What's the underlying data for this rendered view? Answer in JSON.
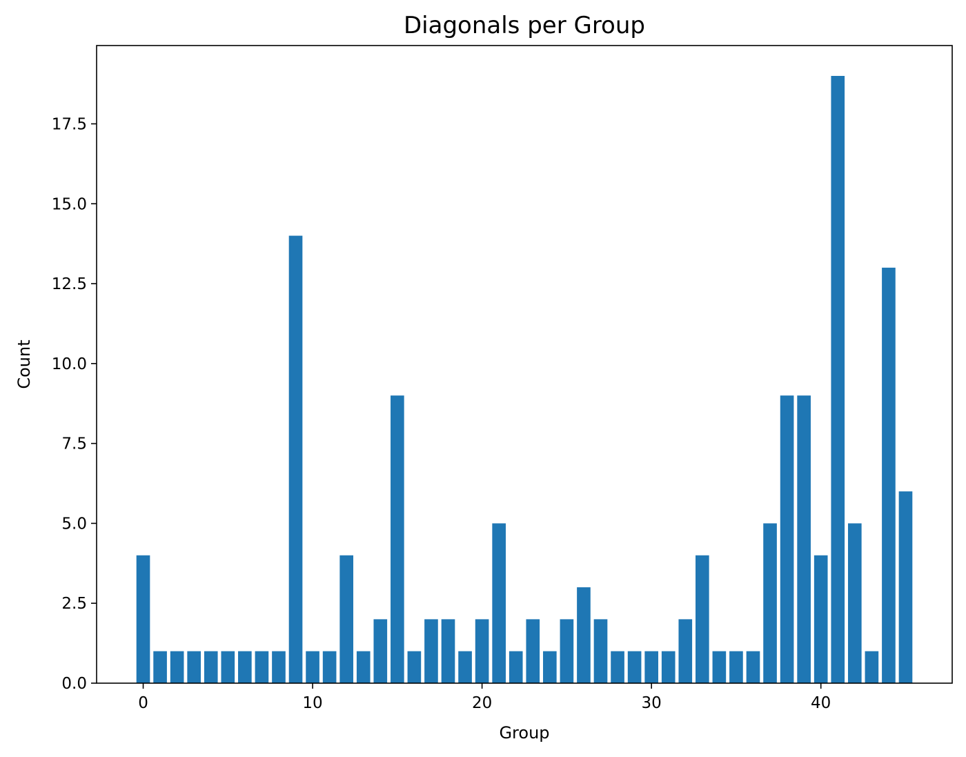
{
  "chart_data": {
    "type": "bar",
    "title": "Diagonals per Group",
    "xlabel": "Group",
    "ylabel": "Count",
    "x": [
      0,
      1,
      2,
      3,
      4,
      5,
      6,
      7,
      8,
      9,
      10,
      11,
      12,
      13,
      14,
      15,
      16,
      17,
      18,
      19,
      20,
      21,
      22,
      23,
      24,
      25,
      26,
      27,
      28,
      29,
      30,
      31,
      32,
      33,
      34,
      35,
      36,
      37,
      38,
      39,
      40,
      41,
      42,
      43,
      44,
      45
    ],
    "values": [
      4,
      1,
      1,
      1,
      1,
      1,
      1,
      1,
      1,
      14,
      1,
      1,
      4,
      1,
      2,
      9,
      1,
      2,
      2,
      1,
      2,
      5,
      1,
      2,
      1,
      2,
      3,
      2,
      1,
      1,
      1,
      1,
      2,
      4,
      1,
      1,
      1,
      5,
      9,
      9,
      4,
      19,
      5,
      1,
      13,
      6
    ],
    "bar_width": 0.8,
    "xlim": [
      -2.75,
      47.75
    ],
    "ylim": [
      0,
      19.95
    ],
    "xticks": [
      0,
      10,
      20,
      30,
      40
    ],
    "xtick_labels": [
      "0",
      "10",
      "20",
      "30",
      "40"
    ],
    "yticks": [
      0,
      2.5,
      5,
      7.5,
      10,
      12.5,
      15,
      17.5
    ],
    "ytick_labels": [
      "0.0",
      "2.5",
      "5.0",
      "7.5",
      "10.0",
      "12.5",
      "15.0",
      "17.5"
    ],
    "grid": false,
    "legend": "none",
    "bar_color": "#1f77b4"
  }
}
